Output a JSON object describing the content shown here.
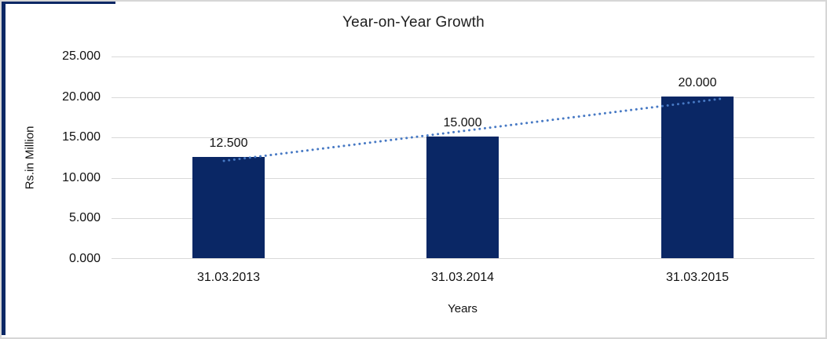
{
  "frame": {
    "accent_color": "#0a2765",
    "border_color": "#d6d6d6"
  },
  "chart_data": {
    "type": "bar",
    "title": "Year-on-Year Growth",
    "categories": [
      "31.03.2013",
      "31.03.2014",
      "31.03.2015"
    ],
    "values": [
      12500,
      15000,
      20000
    ],
    "value_labels": [
      "12.500",
      "15.000",
      "20.000"
    ],
    "xlabel": "Years",
    "ylabel": "Rs.in Million",
    "ylim": [
      0,
      25000
    ],
    "ytick_step": 5000,
    "ytick_labels": [
      "25.000",
      "20.000",
      "15.000",
      "10.000",
      "5.000",
      "0.000"
    ],
    "grid": true,
    "gridline_color": "#d9d9d9",
    "bar_color": "#0a2765",
    "trendline": {
      "type": "linear",
      "style": "dotted",
      "color": "#4779c4"
    },
    "legend": "none"
  }
}
